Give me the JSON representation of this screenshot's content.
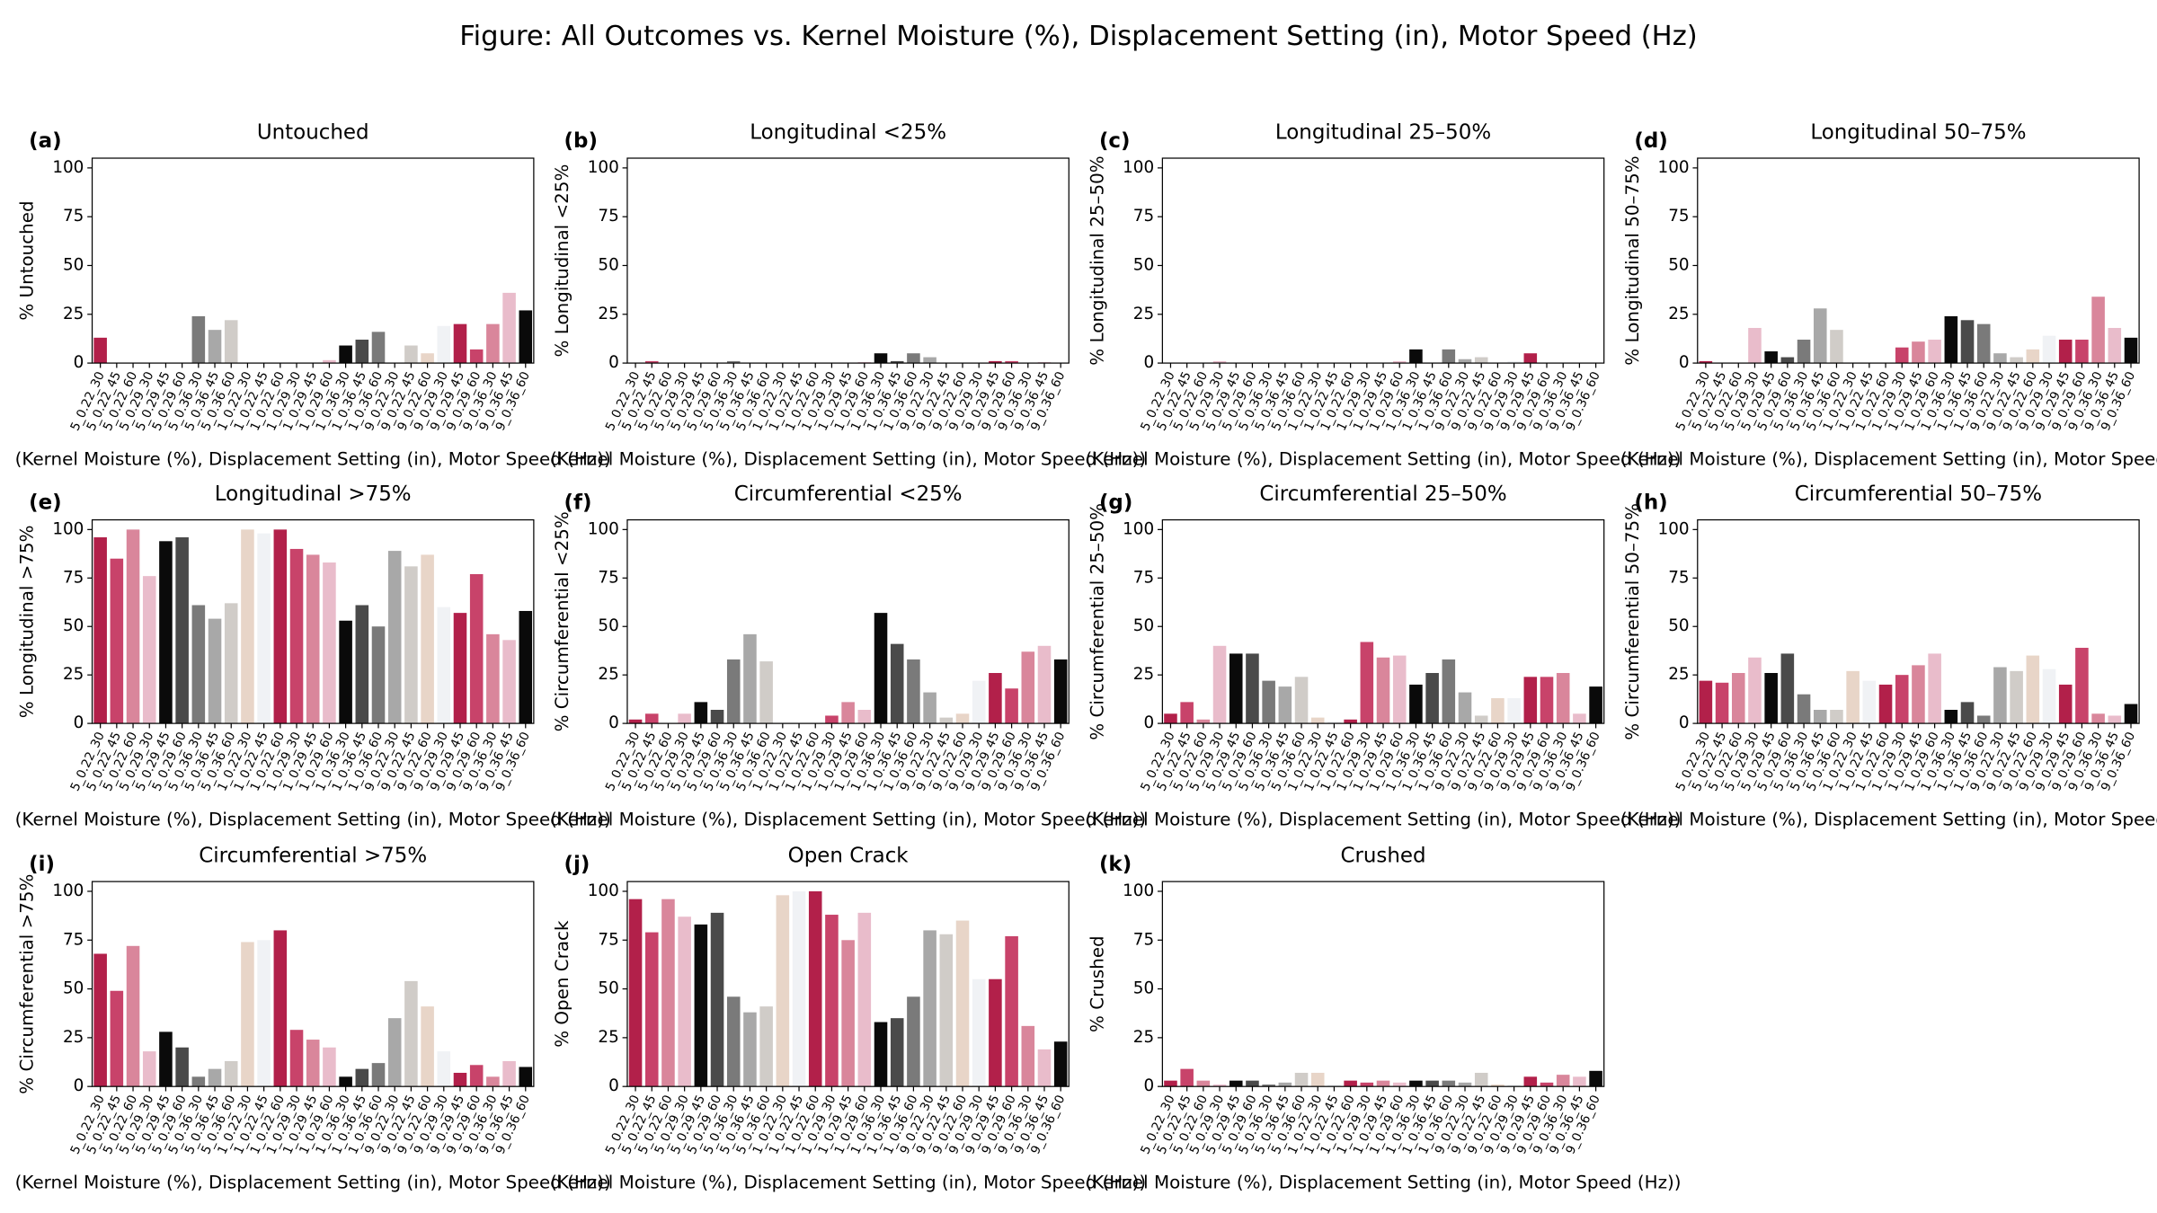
{
  "title": "Figure: All Outcomes vs. Kernel Moisture (%), Displacement Setting (in), Motor Speed (Hz)",
  "chart_data": [
    {
      "type": "bar",
      "panel": "(a)",
      "title": "Untouched",
      "ylabel": "% Untouched",
      "xlabel": "(Kernel Moisture (%), Displacement Setting (in), Motor Speed (Hz))",
      "categories": [
        "5_0.22_30",
        "5_0.22_45",
        "5_0.22_60",
        "5_0.29_30",
        "5_0.29_45",
        "5_0.29_60",
        "5_0.36_30",
        "5_0.36_45",
        "5_0.36_60",
        "1_0.22_30",
        "1_0.22_45",
        "1_0.22_60",
        "1_0.29_30",
        "1_0.29_45",
        "1_0.29_60",
        "1_0.36_30",
        "1_0.36_45",
        "1_0.36_60",
        "9_0.22_30",
        "9_0.22_45",
        "9_0.22_60",
        "9_0.29_30",
        "9_0.29_45",
        "9_0.29_60",
        "9_0.36_30",
        "9_0.36_45",
        "9_0.36_60"
      ],
      "values": [
        13,
        0,
        0,
        0,
        0,
        0,
        24,
        17,
        22,
        0,
        0,
        0,
        0,
        0,
        1.5,
        9,
        12,
        16,
        0,
        9,
        5,
        19,
        20,
        7,
        20,
        36,
        27
      ],
      "colors": [
        "#b2204a",
        "#c8436a",
        "#d9869b",
        "#e9bccb",
        "#0a0a0a",
        "#4a4a4a",
        "#7a7a7a",
        "#a8a8a8",
        "#d0ccc8",
        "#e8d5c8",
        "#f0f2f5"
      ],
      "ylim": [
        0,
        105
      ],
      "yticks": [
        0,
        25,
        50,
        75,
        100
      ]
    },
    {
      "type": "bar",
      "panel": "(b)",
      "title": "Longitudinal <25%",
      "ylabel": "% Longitudinal <25%",
      "xlabel": "(Kernel Moisture (%), Displacement Setting (in), Motor Speed (Hz))",
      "categories": [
        "5_0.22_30",
        "5_0.22_45",
        "5_0.22_60",
        "5_0.29_30",
        "5_0.29_45",
        "5_0.29_60",
        "5_0.36_30",
        "5_0.36_45",
        "5_0.36_60",
        "1_0.22_30",
        "1_0.22_45",
        "1_0.22_60",
        "1_0.29_30",
        "1_0.29_45",
        "1_0.29_60",
        "1_0.36_30",
        "1_0.36_45",
        "1_0.36_60",
        "9_0.22_30",
        "9_0.22_45",
        "9_0.22_60",
        "9_0.29_30",
        "9_0.29_45",
        "9_0.29_60",
        "9_0.36_30",
        "9_0.36_45",
        "9_0.36_60"
      ],
      "values": [
        0,
        1,
        0,
        0,
        0,
        0,
        1,
        0,
        0,
        0,
        0,
        0,
        0,
        0,
        0.5,
        5,
        1,
        5,
        3,
        0,
        0,
        0,
        1,
        1,
        0,
        0.5,
        0
      ],
      "colors": [
        "#b2204a",
        "#c8436a",
        "#d9869b",
        "#e9bccb",
        "#0a0a0a",
        "#4a4a4a",
        "#7a7a7a",
        "#a8a8a8",
        "#d0ccc8",
        "#e8d5c8",
        "#f0f2f5"
      ],
      "ylim": [
        0,
        105
      ],
      "yticks": [
        0,
        25,
        50,
        75,
        100
      ]
    },
    {
      "type": "bar",
      "panel": "(c)",
      "title": "Longitudinal 25–50%",
      "ylabel": "% Longitudinal 25–50%",
      "xlabel": "(Kernel Moisture (%), Displacement Setting (in), Motor Speed (Hz))",
      "categories": [
        "5_0.22_30",
        "5_0.22_45",
        "5_0.22_60",
        "5_0.29_30",
        "5_0.29_45",
        "5_0.29_60",
        "5_0.36_30",
        "5_0.36_45",
        "5_0.36_60",
        "1_0.22_30",
        "1_0.22_45",
        "1_0.22_60",
        "1_0.29_30",
        "1_0.29_45",
        "1_0.29_60",
        "1_0.36_30",
        "1_0.36_45",
        "1_0.36_60",
        "9_0.22_30",
        "9_0.22_45",
        "9_0.22_60",
        "9_0.29_30",
        "9_0.29_45",
        "9_0.29_60",
        "9_0.36_30",
        "9_0.36_45",
        "9_0.36_60"
      ],
      "values": [
        0,
        0,
        0,
        1,
        0,
        0,
        0,
        0,
        0,
        0,
        0,
        0,
        0,
        0,
        1,
        7,
        0,
        7,
        2,
        3,
        0,
        1,
        5,
        0,
        0,
        0,
        0
      ],
      "colors": [
        "#b2204a",
        "#c8436a",
        "#d9869b",
        "#e9bccb",
        "#0a0a0a",
        "#4a4a4a",
        "#7a7a7a",
        "#a8a8a8",
        "#d0ccc8",
        "#e8d5c8",
        "#f0f2f5"
      ],
      "ylim": [
        0,
        105
      ],
      "yticks": [
        0,
        25,
        50,
        75,
        100
      ]
    },
    {
      "type": "bar",
      "panel": "(d)",
      "title": "Longitudinal 50–75%",
      "ylabel": "% Longitudinal 50–75%",
      "xlabel": "(Kernel Moisture (%), Displacement Setting (in), Motor Speed (Hz))",
      "categories": [
        "5_0.22_30",
        "5_0.22_45",
        "5_0.22_60",
        "5_0.29_30",
        "5_0.29_45",
        "5_0.29_60",
        "5_0.36_30",
        "5_0.36_45",
        "5_0.36_60",
        "1_0.22_30",
        "1_0.22_45",
        "1_0.22_60",
        "1_0.29_30",
        "1_0.29_45",
        "1_0.29_60",
        "1_0.36_30",
        "1_0.36_45",
        "1_0.36_60",
        "9_0.22_30",
        "9_0.22_45",
        "9_0.22_60",
        "9_0.29_30",
        "9_0.29_45",
        "9_0.29_60",
        "9_0.36_30",
        "9_0.36_45",
        "9_0.36_60"
      ],
      "values": [
        1,
        0,
        0,
        18,
        6,
        3,
        12,
        28,
        17,
        0,
        0,
        0,
        8,
        11,
        12,
        24,
        22,
        20,
        5,
        3,
        7,
        14,
        12,
        12,
        34,
        18,
        13
      ],
      "colors": [
        "#b2204a",
        "#c8436a",
        "#d9869b",
        "#e9bccb",
        "#0a0a0a",
        "#4a4a4a",
        "#7a7a7a",
        "#a8a8a8",
        "#d0ccc8",
        "#e8d5c8",
        "#f0f2f5"
      ],
      "ylim": [
        0,
        105
      ],
      "yticks": [
        0,
        25,
        50,
        75,
        100
      ]
    },
    {
      "type": "bar",
      "panel": "(e)",
      "title": "Longitudinal >75%",
      "ylabel": "% Longitudinal >75%",
      "xlabel": "(Kernel Moisture (%), Displacement Setting (in), Motor Speed (Hz))",
      "categories": [
        "5_0.22_30",
        "5_0.22_45",
        "5_0.22_60",
        "5_0.29_30",
        "5_0.29_45",
        "5_0.29_60",
        "5_0.36_30",
        "5_0.36_45",
        "5_0.36_60",
        "1_0.22_30",
        "1_0.22_45",
        "1_0.22_60",
        "1_0.29_30",
        "1_0.29_45",
        "1_0.29_60",
        "1_0.36_30",
        "1_0.36_45",
        "1_0.36_60",
        "9_0.22_30",
        "9_0.22_45",
        "9_0.22_60",
        "9_0.29_30",
        "9_0.29_45",
        "9_0.29_60",
        "9_0.36_30",
        "9_0.36_45",
        "9_0.36_60"
      ],
      "values": [
        96,
        85,
        100,
        76,
        94,
        96,
        61,
        54,
        62,
        100,
        98,
        100,
        90,
        87,
        83,
        53,
        61,
        50,
        89,
        81,
        87,
        60,
        57,
        77,
        46,
        43,
        58
      ],
      "colors": [
        "#b2204a",
        "#c8436a",
        "#d9869b",
        "#e9bccb",
        "#0a0a0a",
        "#4a4a4a",
        "#7a7a7a",
        "#a8a8a8",
        "#d0ccc8",
        "#e8d5c8",
        "#f0f2f5"
      ],
      "ylim": [
        0,
        105
      ],
      "yticks": [
        0,
        25,
        50,
        75,
        100
      ]
    },
    {
      "type": "bar",
      "panel": "(f)",
      "title": "Circumferential <25%",
      "ylabel": "% Circumferential <25%",
      "xlabel": "(Kernel Moisture (%), Displacement Setting (in), Motor Speed (Hz))",
      "categories": [
        "5_0.22_30",
        "5_0.22_45",
        "5_0.22_60",
        "5_0.29_30",
        "5_0.29_45",
        "5_0.29_60",
        "5_0.36_30",
        "5_0.36_45",
        "5_0.36_60",
        "1_0.22_30",
        "1_0.22_45",
        "1_0.22_60",
        "1_0.29_30",
        "1_0.29_45",
        "1_0.29_60",
        "1_0.36_30",
        "1_0.36_45",
        "1_0.36_60",
        "9_0.22_30",
        "9_0.22_45",
        "9_0.22_60",
        "9_0.29_30",
        "9_0.29_45",
        "9_0.29_60",
        "9_0.36_30",
        "9_0.36_45",
        "9_0.36_60"
      ],
      "values": [
        2,
        5,
        0,
        5,
        11,
        7,
        33,
        46,
        32,
        0,
        0,
        0,
        4,
        11,
        7,
        57,
        41,
        33,
        16,
        3,
        5,
        22,
        26,
        18,
        37,
        40,
        33
      ],
      "colors": [
        "#b2204a",
        "#c8436a",
        "#d9869b",
        "#e9bccb",
        "#0a0a0a",
        "#4a4a4a",
        "#7a7a7a",
        "#a8a8a8",
        "#d0ccc8",
        "#e8d5c8",
        "#f0f2f5"
      ],
      "ylim": [
        0,
        105
      ],
      "yticks": [
        0,
        25,
        50,
        75,
        100
      ]
    },
    {
      "type": "bar",
      "panel": "(g)",
      "title": "Circumferential 25–50%",
      "ylabel": "% Circumferential 25–50%",
      "xlabel": "(Kernel Moisture (%), Displacement Setting (in), Motor Speed (Hz))",
      "categories": [
        "5_0.22_30",
        "5_0.22_45",
        "5_0.22_60",
        "5_0.29_30",
        "5_0.29_45",
        "5_0.29_60",
        "5_0.36_30",
        "5_0.36_45",
        "5_0.36_60",
        "1_0.22_30",
        "1_0.22_45",
        "1_0.22_60",
        "1_0.29_30",
        "1_0.29_45",
        "1_0.29_60",
        "1_0.36_30",
        "1_0.36_45",
        "1_0.36_60",
        "9_0.22_30",
        "9_0.22_45",
        "9_0.22_60",
        "9_0.29_30",
        "9_0.29_45",
        "9_0.29_60",
        "9_0.36_30",
        "9_0.36_45",
        "9_0.36_60"
      ],
      "values": [
        5,
        11,
        2,
        40,
        36,
        36,
        22,
        19,
        24,
        3,
        1,
        2,
        42,
        34,
        35,
        20,
        26,
        33,
        16,
        4,
        13,
        13,
        24,
        24,
        26,
        5,
        19
      ],
      "colors": [
        "#b2204a",
        "#c8436a",
        "#d9869b",
        "#e9bccb",
        "#0a0a0a",
        "#4a4a4a",
        "#7a7a7a",
        "#a8a8a8",
        "#d0ccc8",
        "#e8d5c8",
        "#f0f2f5"
      ],
      "ylim": [
        0,
        105
      ],
      "yticks": [
        0,
        25,
        50,
        75,
        100
      ]
    },
    {
      "type": "bar",
      "panel": "(h)",
      "title": "Circumferential 50–75%",
      "ylabel": "% Circumferential 50–75%",
      "xlabel": "(Kernel Moisture (%), Displacement Setting (in), Motor Speed (Hz))",
      "categories": [
        "5_0.22_30",
        "5_0.22_45",
        "5_0.22_60",
        "5_0.29_30",
        "5_0.29_45",
        "5_0.29_60",
        "5_0.36_30",
        "5_0.36_45",
        "5_0.36_60",
        "1_0.22_30",
        "1_0.22_45",
        "1_0.22_60",
        "1_0.29_30",
        "1_0.29_45",
        "1_0.29_60",
        "1_0.36_30",
        "1_0.36_45",
        "1_0.36_60",
        "9_0.22_30",
        "9_0.22_45",
        "9_0.22_60",
        "9_0.29_30",
        "9_0.29_45",
        "9_0.29_60",
        "9_0.36_30",
        "9_0.36_45",
        "9_0.36_60"
      ],
      "values": [
        22,
        21,
        26,
        34,
        26,
        36,
        15,
        7,
        7,
        27,
        22,
        20,
        25,
        30,
        36,
        7,
        11,
        4,
        29,
        27,
        35,
        28,
        20,
        39,
        5,
        4,
        10
      ],
      "colors": [
        "#b2204a",
        "#c8436a",
        "#d9869b",
        "#e9bccb",
        "#0a0a0a",
        "#4a4a4a",
        "#7a7a7a",
        "#a8a8a8",
        "#d0ccc8",
        "#e8d5c8",
        "#f0f2f5"
      ],
      "ylim": [
        0,
        105
      ],
      "yticks": [
        0,
        25,
        50,
        75,
        100
      ]
    },
    {
      "type": "bar",
      "panel": "(i)",
      "title": "Circumferential >75%",
      "ylabel": "% Circumferential >75%",
      "xlabel": "(Kernel Moisture (%), Displacement Setting (in), Motor Speed (Hz))",
      "categories": [
        "5_0.22_30",
        "5_0.22_45",
        "5_0.22_60",
        "5_0.29_30",
        "5_0.29_45",
        "5_0.29_60",
        "5_0.36_30",
        "5_0.36_45",
        "5_0.36_60",
        "1_0.22_30",
        "1_0.22_45",
        "1_0.22_60",
        "1_0.29_30",
        "1_0.29_45",
        "1_0.29_60",
        "1_0.36_30",
        "1_0.36_45",
        "1_0.36_60",
        "9_0.22_30",
        "9_0.22_45",
        "9_0.22_60",
        "9_0.29_30",
        "9_0.29_45",
        "9_0.29_60",
        "9_0.36_30",
        "9_0.36_45",
        "9_0.36_60"
      ],
      "values": [
        68,
        49,
        72,
        18,
        28,
        20,
        5,
        9,
        13,
        74,
        75,
        80,
        29,
        24,
        20,
        5,
        9,
        12,
        35,
        54,
        41,
        18,
        7,
        11,
        5,
        13,
        10
      ],
      "colors": [
        "#b2204a",
        "#c8436a",
        "#d9869b",
        "#e9bccb",
        "#0a0a0a",
        "#4a4a4a",
        "#7a7a7a",
        "#a8a8a8",
        "#d0ccc8",
        "#e8d5c8",
        "#f0f2f5"
      ],
      "ylim": [
        0,
        105
      ],
      "yticks": [
        0,
        25,
        50,
        75,
        100
      ]
    },
    {
      "type": "bar",
      "panel": "(j)",
      "title": "Open Crack",
      "ylabel": "% Open Crack",
      "xlabel": "(Kernel Moisture (%), Displacement Setting (in), Motor Speed (Hz))",
      "categories": [
        "5_0.22_30",
        "5_0.22_45",
        "5_0.22_60",
        "5_0.29_30",
        "5_0.29_45",
        "5_0.29_60",
        "5_0.36_30",
        "5_0.36_45",
        "5_0.36_60",
        "1_0.22_30",
        "1_0.22_45",
        "1_0.22_60",
        "1_0.29_30",
        "1_0.29_45",
        "1_0.29_60",
        "1_0.36_30",
        "1_0.36_45",
        "1_0.36_60",
        "9_0.22_30",
        "9_0.22_45",
        "9_0.22_60",
        "9_0.29_30",
        "9_0.29_45",
        "9_0.29_60",
        "9_0.36_30",
        "9_0.36_45",
        "9_0.36_60"
      ],
      "values": [
        96,
        79,
        96,
        87,
        83,
        89,
        46,
        38,
        41,
        98,
        100,
        100,
        88,
        75,
        89,
        33,
        35,
        46,
        80,
        78,
        85,
        55,
        55,
        77,
        31,
        19,
        23
      ],
      "colors": [
        "#b2204a",
        "#c8436a",
        "#d9869b",
        "#e9bccb",
        "#0a0a0a",
        "#4a4a4a",
        "#7a7a7a",
        "#a8a8a8",
        "#d0ccc8",
        "#e8d5c8",
        "#f0f2f5"
      ],
      "ylim": [
        0,
        105
      ],
      "yticks": [
        0,
        25,
        50,
        75,
        100
      ]
    },
    {
      "type": "bar",
      "panel": "(k)",
      "title": "Crushed",
      "ylabel": "% Crushed",
      "xlabel": "(Kernel Moisture (%), Displacement Setting (in), Motor Speed (Hz))",
      "categories": [
        "5_0.22_30",
        "5_0.22_45",
        "5_0.22_60",
        "5_0.29_30",
        "5_0.29_45",
        "5_0.29_60",
        "5_0.36_30",
        "5_0.36_45",
        "5_0.36_60",
        "1_0.22_30",
        "1_0.22_45",
        "1_0.22_60",
        "1_0.29_30",
        "1_0.29_45",
        "1_0.29_60",
        "1_0.36_30",
        "1_0.36_45",
        "1_0.36_60",
        "9_0.22_30",
        "9_0.22_45",
        "9_0.22_60",
        "9_0.29_30",
        "9_0.29_45",
        "9_0.29_60",
        "9_0.36_30",
        "9_0.36_45",
        "9_0.36_60"
      ],
      "values": [
        3,
        9,
        3,
        1,
        3,
        3,
        1,
        2,
        7,
        7,
        1,
        3,
        2,
        3,
        2,
        3,
        3,
        3,
        2,
        7,
        1,
        1,
        5,
        2,
        6,
        5,
        8
      ],
      "colors": [
        "#b2204a",
        "#c8436a",
        "#d9869b",
        "#e9bccb",
        "#0a0a0a",
        "#4a4a4a",
        "#7a7a7a",
        "#a8a8a8",
        "#d0ccc8",
        "#e8d5c8",
        "#f0f2f5"
      ],
      "ylim": [
        0,
        105
      ],
      "yticks": [
        0,
        25,
        50,
        75,
        100
      ]
    }
  ]
}
